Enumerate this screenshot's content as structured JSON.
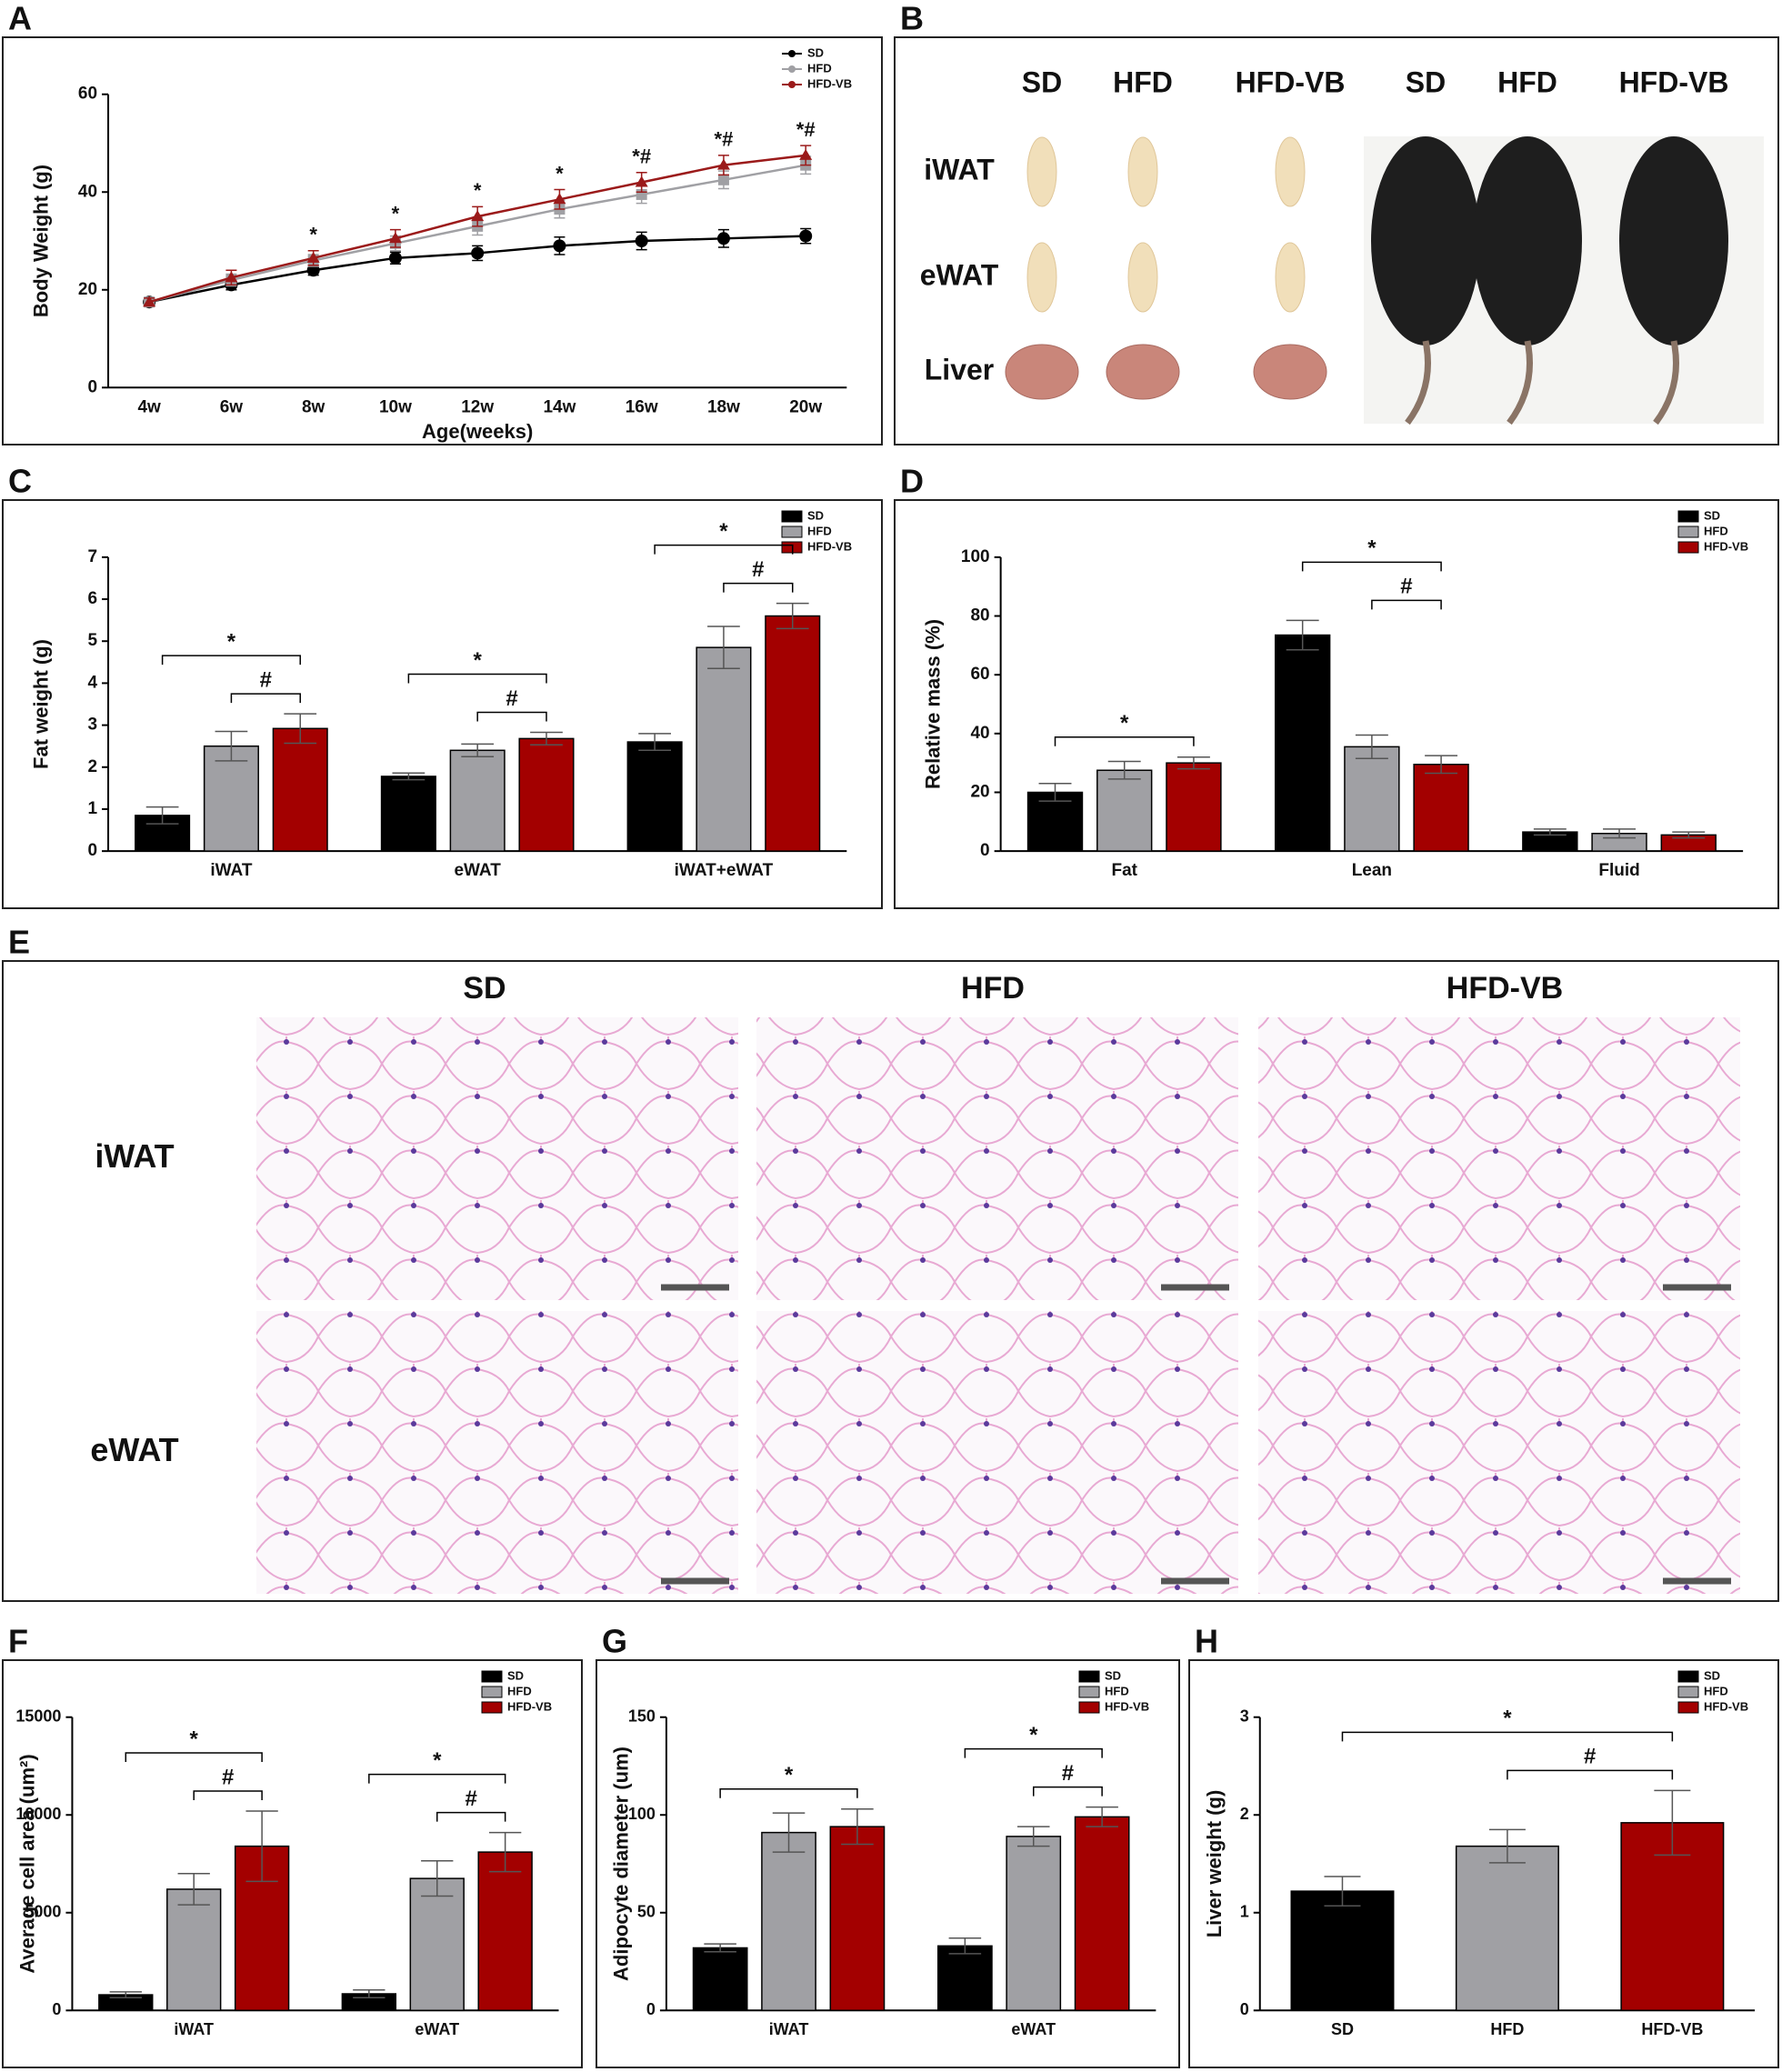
{
  "chart_data": [
    {
      "type": "line",
      "panel": "A",
      "ylabel": "Body Weight (g)",
      "xlabel": "Age(weeks)",
      "categories": [
        "4w",
        "6w",
        "8w",
        "10w",
        "12w",
        "14w",
        "16w",
        "18w",
        "20w"
      ],
      "ylim": [
        0,
        60
      ],
      "yticks": [
        0,
        20,
        40,
        60
      ],
      "series": [
        {
          "name": "SD",
          "color": "#000000",
          "values": [
            17.5,
            21,
            24,
            26.5,
            27.5,
            29,
            30,
            30.5,
            31
          ],
          "errors": [
            0.8,
            1,
            1,
            1.2,
            1.5,
            1.8,
            1.8,
            1.8,
            1.5
          ]
        },
        {
          "name": "HFD",
          "color": "#a0a0a4",
          "values": [
            17.5,
            22,
            26,
            29.5,
            33,
            36.5,
            39.5,
            42.5,
            45.5
          ],
          "errors": [
            0.8,
            1.2,
            1.2,
            1.5,
            1.8,
            1.8,
            1.8,
            1.8,
            1.8
          ]
        },
        {
          "name": "HFD-VB",
          "color": "#9b1a1a",
          "values": [
            17.5,
            22.5,
            26.5,
            30.5,
            35,
            38.5,
            42,
            45.5,
            47.5
          ],
          "errors": [
            0.8,
            1.5,
            1.5,
            1.8,
            2,
            2,
            2,
            2,
            2
          ]
        }
      ],
      "annotations": [
        null,
        null,
        "*",
        "*",
        "*",
        "*",
        "*#",
        "*#",
        "*#"
      ]
    },
    {
      "type": "bar",
      "panel": "C",
      "ylabel": "Fat weight (g)",
      "categories": [
        "iWAT",
        "eWAT",
        "iWAT+eWAT"
      ],
      "ylim": [
        0,
        7
      ],
      "yticks": [
        0,
        1,
        2,
        3,
        4,
        5,
        6,
        7
      ],
      "series": [
        {
          "name": "SD",
          "color": "#000000",
          "values": [
            0.85,
            1.78,
            2.6
          ],
          "errors": [
            0.2,
            0.08,
            0.2
          ]
        },
        {
          "name": "HFD",
          "color": "#a0a0a4",
          "values": [
            2.5,
            2.4,
            4.85
          ],
          "errors": [
            0.35,
            0.15,
            0.5
          ]
        },
        {
          "name": "HFD-VB",
          "color": "#a30000",
          "values": [
            2.92,
            2.68,
            5.6
          ],
          "errors": [
            0.35,
            0.15,
            0.3
          ]
        }
      ],
      "brackets": [
        [
          "*",
          "#"
        ],
        [
          "*",
          "#"
        ],
        [
          "*",
          "#"
        ]
      ]
    },
    {
      "type": "bar",
      "panel": "D",
      "ylabel": "Relative mass (%)",
      "categories": [
        "Fat",
        "Lean",
        "Fluid"
      ],
      "ylim": [
        0,
        100
      ],
      "yticks": [
        0,
        20,
        40,
        60,
        80,
        100
      ],
      "series": [
        {
          "name": "SD",
          "color": "#000000",
          "values": [
            20,
            73.5,
            6.5
          ],
          "errors": [
            3,
            5,
            1
          ]
        },
        {
          "name": "HFD",
          "color": "#a0a0a4",
          "values": [
            27.5,
            35.5,
            6
          ],
          "errors": [
            3,
            4,
            1.5
          ]
        },
        {
          "name": "HFD-VB",
          "color": "#a30000",
          "values": [
            30,
            29.5,
            5.5
          ],
          "errors": [
            2,
            3,
            1
          ]
        }
      ],
      "brackets": [
        [
          "*"
        ],
        [
          "*",
          "#"
        ],
        []
      ]
    },
    {
      "type": "bar",
      "panel": "F",
      "ylabel": "Average cell area (um²)",
      "categories": [
        "iWAT",
        "eWAT"
      ],
      "ylim": [
        0,
        15000
      ],
      "yticks": [
        0,
        5000,
        10000,
        15000
      ],
      "series": [
        {
          "name": "SD",
          "color": "#000000",
          "values": [
            800,
            850
          ],
          "errors": [
            150,
            200
          ]
        },
        {
          "name": "HFD",
          "color": "#a0a0a4",
          "values": [
            6200,
            6750
          ],
          "errors": [
            800,
            900
          ]
        },
        {
          "name": "HFD-VB",
          "color": "#a30000",
          "values": [
            8400,
            8100
          ],
          "errors": [
            1800,
            1000
          ]
        }
      ],
      "brackets": [
        [
          "*",
          "#"
        ],
        [
          "*",
          "#"
        ]
      ]
    },
    {
      "type": "bar",
      "panel": "G",
      "ylabel": "Adipocyte diameter (um)",
      "categories": [
        "iWAT",
        "eWAT"
      ],
      "ylim": [
        0,
        150
      ],
      "yticks": [
        0,
        50,
        100,
        150
      ],
      "series": [
        {
          "name": "SD",
          "color": "#000000",
          "values": [
            32,
            33
          ],
          "errors": [
            2,
            4
          ]
        },
        {
          "name": "HFD",
          "color": "#a0a0a4",
          "values": [
            91,
            89
          ],
          "errors": [
            10,
            5
          ]
        },
        {
          "name": "HFD-VB",
          "color": "#a30000",
          "values": [
            94,
            99
          ],
          "errors": [
            9,
            5
          ]
        }
      ],
      "brackets": [
        [
          "*"
        ],
        [
          "*",
          "#"
        ]
      ]
    },
    {
      "type": "bar",
      "panel": "H",
      "ylabel": "Liver weight (g)",
      "categories": [
        "SD",
        "HFD",
        "HFD-VB"
      ],
      "ylim": [
        0,
        3
      ],
      "yticks": [
        0,
        1,
        2,
        3
      ],
      "values": [
        1.22,
        1.68,
        1.92
      ],
      "errors": [
        0.15,
        0.17,
        0.33
      ],
      "colors": [
        "#000000",
        "#a0a0a4",
        "#a30000"
      ],
      "legend": [
        "SD",
        "HFD",
        "HFD-VB"
      ],
      "brackets": [
        "*",
        "#"
      ]
    }
  ],
  "figure_b": {
    "panel": "B",
    "organ_columns": [
      "SD",
      "HFD",
      "HFD-VB"
    ],
    "organ_rows": [
      "iWAT",
      "eWAT",
      "Liver"
    ],
    "mouse_columns": [
      "SD",
      "HFD",
      "HFD-VB"
    ]
  },
  "figure_e": {
    "panel": "E",
    "columns": [
      "SD",
      "HFD",
      "HFD-VB"
    ],
    "rows": [
      "iWAT",
      "eWAT"
    ]
  }
}
